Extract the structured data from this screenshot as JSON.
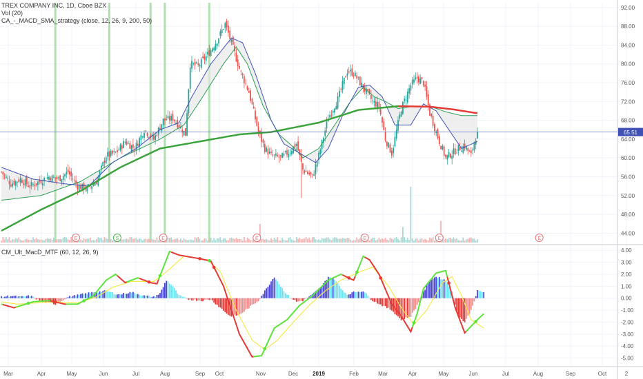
{
  "main_legend": {
    "symbol_line": "TREX COMPANY INC, 1D, Cboe BZX",
    "volume_line": "Vol (20)",
    "strategy_line": "CA_-_MACD_SMA_strategy (close, 12, 26, 9, 200, 50)"
  },
  "macd_legend": {
    "line": "CM_Ult_MacD_MTF (60, 12, 26, 9)"
  },
  "colors": {
    "up_candle": "#26a69a",
    "down_candle": "#ef5350",
    "sma200": "#3ca33c",
    "sma200_below": "#e53935",
    "sma50": "#2e9e55",
    "ema_fast": "#3f51b5",
    "ema_fast_alt": "#ef5350",
    "fill": "#e6e6e6",
    "signal_bar": "#9ed89e",
    "price_line": "#3f51b5",
    "earnings": "#e57373",
    "macd_up": "#5ee23c",
    "macd_down": "#e53935",
    "signal": "#f7e94b",
    "hist_pos_strong": "#4a47d9",
    "hist_pos_weak": "#6ee3f2",
    "hist_neg_strong": "#e53935",
    "hist_neg_weak": "#f28b8b"
  },
  "chart_data": [
    {
      "type": "candlestick",
      "title": "TREX COMPANY INC, 1D, Cboe BZX",
      "ylim": [
        42,
        93
      ],
      "y_ticks": [
        "92.00",
        "88.00",
        "84.00",
        "80.00",
        "76.00",
        "72.00",
        "68.00",
        "64.00",
        "60.00",
        "56.00",
        "52.00",
        "48.00",
        "44.00"
      ],
      "x_ticks": [
        "Mar",
        "Apr",
        "May",
        "Jun",
        "Jul",
        "Aug",
        "Sep",
        "Oct",
        "Nov",
        "Dec",
        "2019",
        "Feb",
        "Mar",
        "Apr",
        "May",
        "Jun",
        "Jul",
        "Aug",
        "Sep",
        "Oct",
        "2"
      ],
      "last_price": {
        "value": 65.51,
        "label": "65.51"
      },
      "close_anchors": [
        [
          0,
          57
        ],
        [
          6,
          54.5
        ],
        [
          12,
          55.5
        ],
        [
          18,
          54
        ],
        [
          24,
          55
        ],
        [
          30,
          56
        ],
        [
          36,
          55.5
        ],
        [
          42,
          57
        ],
        [
          48,
          54
        ],
        [
          54,
          53.5
        ],
        [
          60,
          55
        ],
        [
          66,
          60.5
        ],
        [
          72,
          61
        ],
        [
          78,
          63.5
        ],
        [
          84,
          62
        ],
        [
          90,
          66
        ],
        [
          96,
          64
        ],
        [
          102,
          68
        ],
        [
          108,
          68.5
        ],
        [
          114,
          66
        ],
        [
          116,
          65
        ],
        [
          119,
          80
        ],
        [
          124,
          79.5
        ],
        [
          130,
          82
        ],
        [
          136,
          85
        ],
        [
          141,
          88.5
        ],
        [
          144,
          85.5
        ],
        [
          150,
          79
        ],
        [
          156,
          74
        ],
        [
          162,
          65.5
        ],
        [
          166,
          62
        ],
        [
          170,
          60.5
        ],
        [
          176,
          60
        ],
        [
          182,
          61.5
        ],
        [
          186,
          63
        ],
        [
          190,
          57.5
        ],
        [
          196,
          56
        ],
        [
          200,
          60.5
        ],
        [
          206,
          68.5
        ],
        [
          212,
          72.5
        ],
        [
          218,
          78.5
        ],
        [
          222,
          78
        ],
        [
          226,
          76
        ],
        [
          230,
          74
        ],
        [
          234,
          72
        ],
        [
          238,
          71
        ],
        [
          242,
          64
        ],
        [
          246,
          61
        ],
        [
          252,
          70.5
        ],
        [
          258,
          75.5
        ],
        [
          262,
          77
        ],
        [
          266,
          76
        ],
        [
          270,
          69.5
        ],
        [
          276,
          63.5
        ],
        [
          280,
          60
        ],
        [
          284,
          61
        ],
        [
          288,
          62
        ],
        [
          292,
          62.5
        ],
        [
          296,
          60.5
        ],
        [
          298,
          63.5
        ],
        [
          300,
          65.51
        ]
      ],
      "sma200_anchors": [
        [
          0,
          44.5
        ],
        [
          25,
          49
        ],
        [
          50,
          53
        ],
        [
          75,
          58
        ],
        [
          100,
          62
        ],
        [
          130,
          63.8
        ],
        [
          150,
          65
        ],
        [
          170,
          65.5
        ],
        [
          185,
          66.5
        ],
        [
          200,
          67.5
        ],
        [
          225,
          70.2
        ],
        [
          250,
          71
        ],
        [
          270,
          70.9
        ],
        [
          285,
          70.3
        ],
        [
          300,
          69.5
        ]
      ],
      "sma50_anchors": [
        [
          0,
          51
        ],
        [
          25,
          52
        ],
        [
          50,
          55
        ],
        [
          75,
          60
        ],
        [
          100,
          64
        ],
        [
          115,
          67
        ],
        [
          125,
          72
        ],
        [
          140,
          80
        ],
        [
          148,
          83.6
        ],
        [
          155,
          80
        ],
        [
          165,
          71
        ],
        [
          175,
          65
        ],
        [
          185,
          62
        ],
        [
          190,
          60
        ],
        [
          200,
          62
        ],
        [
          210,
          67
        ],
        [
          220,
          72
        ],
        [
          228,
          75
        ],
        [
          235,
          73
        ],
        [
          242,
          72
        ],
        [
          250,
          70.5
        ],
        [
          260,
          71
        ],
        [
          270,
          71
        ],
        [
          280,
          69.8
        ],
        [
          290,
          69
        ],
        [
          300,
          69
        ]
      ],
      "ema_anchors": [
        [
          0,
          58
        ],
        [
          20,
          55.5
        ],
        [
          40,
          54.5
        ],
        [
          55,
          54
        ],
        [
          70,
          59
        ],
        [
          85,
          62
        ],
        [
          100,
          66
        ],
        [
          112,
          67.5
        ],
        [
          120,
          73
        ],
        [
          132,
          80
        ],
        [
          145,
          85.5
        ],
        [
          152,
          84.5
        ],
        [
          160,
          78
        ],
        [
          170,
          68
        ],
        [
          178,
          63
        ],
        [
          188,
          61
        ],
        [
          198,
          59
        ],
        [
          206,
          62
        ],
        [
          215,
          69
        ],
        [
          225,
          75
        ],
        [
          232,
          75.5
        ],
        [
          240,
          73
        ],
        [
          248,
          67
        ],
        [
          258,
          67
        ],
        [
          266,
          71.5
        ],
        [
          274,
          70
        ],
        [
          282,
          66
        ],
        [
          290,
          62
        ],
        [
          300,
          63.5
        ]
      ],
      "earnings_markers": [
        {
          "index": 47,
          "label": "E"
        },
        {
          "index": 73,
          "label": "S"
        },
        {
          "index": 102,
          "label": "E"
        },
        {
          "index": 161,
          "label": "E"
        },
        {
          "index": 229,
          "label": "E"
        },
        {
          "index": 276,
          "label": "E"
        },
        {
          "index": 339,
          "label": "E"
        }
      ],
      "signal_bars": [
        34,
        68,
        94,
        103,
        131
      ],
      "volume": {
        "spikes": [
          [
            163,
            0.3
          ],
          [
            258,
            0.9
          ],
          [
            277,
            0.35
          ],
          [
            253,
            0.25
          ]
        ]
      }
    },
    {
      "type": "macd",
      "title": "CM_Ult_MacD_MTF (60, 12, 26, 9)",
      "ylim": [
        -5.6,
        4.3
      ],
      "y_ticks": [
        "4.00",
        "3.00",
        "2.00",
        "1.00",
        "0.00",
        "-1.00",
        "-2.00",
        "-3.00",
        "-4.00",
        "-5.00"
      ],
      "macd_anchors": [
        [
          0,
          -0.5
        ],
        [
          8,
          -0.8
        ],
        [
          20,
          -0.3
        ],
        [
          30,
          -0.2
        ],
        [
          40,
          -0.5
        ],
        [
          48,
          -0.5
        ],
        [
          58,
          0.2
        ],
        [
          66,
          1.5
        ],
        [
          72,
          2.0
        ],
        [
          78,
          1.3
        ],
        [
          86,
          1.7
        ],
        [
          94,
          1.3
        ],
        [
          98,
          1.2
        ],
        [
          106,
          3.9
        ],
        [
          112,
          3.6
        ],
        [
          125,
          3.3
        ],
        [
          132,
          3.1
        ],
        [
          140,
          1.0
        ],
        [
          150,
          -3.0
        ],
        [
          158,
          -4.9
        ],
        [
          164,
          -4.8
        ],
        [
          172,
          -2.5
        ],
        [
          180,
          -1.8
        ],
        [
          188,
          -0.6
        ],
        [
          196,
          0.2
        ],
        [
          206,
          1.5
        ],
        [
          214,
          2.0
        ],
        [
          222,
          1.5
        ],
        [
          228,
          3.5
        ],
        [
          232,
          3.2
        ],
        [
          238,
          2.0
        ],
        [
          246,
          -0.5
        ],
        [
          252,
          -1.5
        ],
        [
          258,
          -2.8
        ],
        [
          262,
          -1.3
        ],
        [
          266,
          0.8
        ],
        [
          274,
          2.1
        ],
        [
          280,
          2.3
        ],
        [
          286,
          -0.8
        ],
        [
          292,
          -2.9
        ],
        [
          300,
          -1.8
        ],
        [
          304,
          -1.3
        ]
      ],
      "signal_anchors": [
        [
          0,
          -0.3
        ],
        [
          10,
          -0.5
        ],
        [
          22,
          -0.4
        ],
        [
          35,
          -0.3
        ],
        [
          48,
          -0.4
        ],
        [
          60,
          0.1
        ],
        [
          70,
          0.9
        ],
        [
          82,
          1.4
        ],
        [
          96,
          1.4
        ],
        [
          104,
          2.2
        ],
        [
          115,
          3.5
        ],
        [
          130,
          3.2
        ],
        [
          138,
          2.2
        ],
        [
          148,
          -1.0
        ],
        [
          158,
          -3.5
        ],
        [
          166,
          -4.3
        ],
        [
          174,
          -3.5
        ],
        [
          184,
          -2.0
        ],
        [
          194,
          -0.6
        ],
        [
          204,
          0.6
        ],
        [
          214,
          1.5
        ],
        [
          226,
          2.2
        ],
        [
          234,
          2.6
        ],
        [
          244,
          1.0
        ],
        [
          252,
          -0.8
        ],
        [
          260,
          -2.2
        ],
        [
          268,
          -1.0
        ],
        [
          278,
          1.3
        ],
        [
          284,
          1.8
        ],
        [
          290,
          0.2
        ],
        [
          296,
          -1.8
        ],
        [
          304,
          -2.5
        ]
      ],
      "histogram_anchors": [
        [
          0,
          0.1
        ],
        [
          6,
          0.2
        ],
        [
          12,
          0.1
        ],
        [
          18,
          0.2
        ],
        [
          26,
          -0.3
        ],
        [
          34,
          -0.5
        ],
        [
          42,
          0.1
        ],
        [
          50,
          0.3
        ],
        [
          58,
          0.5
        ],
        [
          66,
          0.6
        ],
        [
          74,
          0.3
        ],
        [
          82,
          0.5
        ],
        [
          90,
          0.2
        ],
        [
          96,
          0.1
        ],
        [
          100,
          0.4
        ],
        [
          104,
          1.5
        ],
        [
          108,
          1.0
        ],
        [
          112,
          0.2
        ],
        [
          118,
          -0.1
        ],
        [
          126,
          -0.2
        ],
        [
          132,
          -0.1
        ],
        [
          138,
          -0.8
        ],
        [
          144,
          -1.5
        ],
        [
          150,
          -1.4
        ],
        [
          156,
          -0.8
        ],
        [
          162,
          -0.2
        ],
        [
          168,
          1.0
        ],
        [
          172,
          1.8
        ],
        [
          176,
          1.0
        ],
        [
          180,
          0.3
        ],
        [
          186,
          -0.3
        ],
        [
          190,
          -0.2
        ],
        [
          196,
          0.3
        ],
        [
          202,
          1.0
        ],
        [
          206,
          1.8
        ],
        [
          210,
          1.6
        ],
        [
          214,
          0.8
        ],
        [
          218,
          0.3
        ],
        [
          222,
          0.5
        ],
        [
          228,
          0.6
        ],
        [
          234,
          -0.2
        ],
        [
          240,
          -0.6
        ],
        [
          246,
          -1.0
        ],
        [
          252,
          -1.8
        ],
        [
          258,
          -1.5
        ],
        [
          262,
          -0.6
        ],
        [
          266,
          0.5
        ],
        [
          270,
          1.5
        ],
        [
          274,
          1.8
        ],
        [
          280,
          1.5
        ],
        [
          284,
          0.5
        ],
        [
          288,
          -1.5
        ],
        [
          292,
          -2.0
        ],
        [
          296,
          -1.0
        ],
        [
          300,
          0.6
        ],
        [
          304,
          0.5
        ]
      ]
    }
  ]
}
